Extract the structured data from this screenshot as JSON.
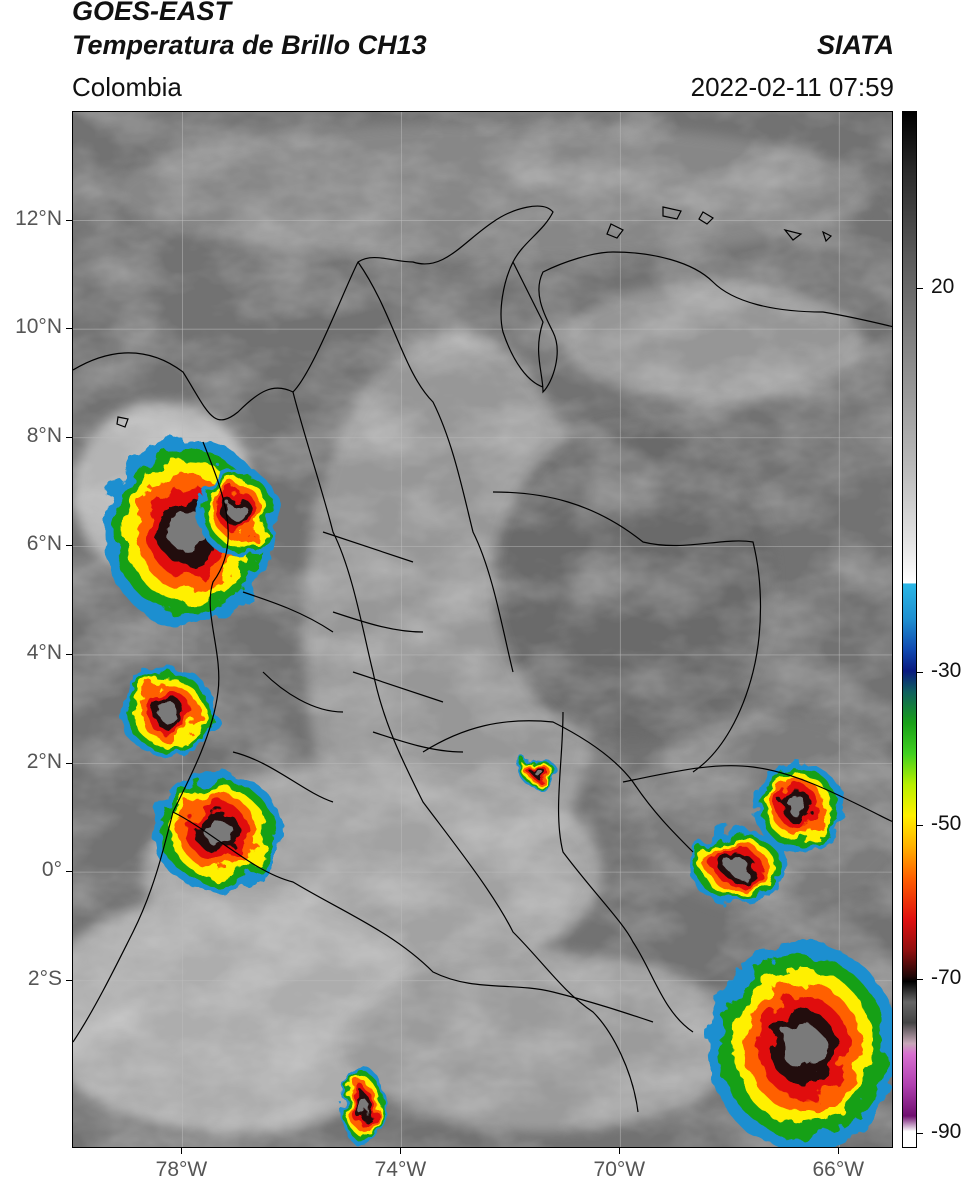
{
  "header": {
    "line1": "GOES-EAST",
    "line2": "Temperatura de Brillo CH13",
    "region": "Colombia",
    "brand": "SIATA",
    "timestamp": "2022-02-11 07:59"
  },
  "map": {
    "lat_ticks": [
      {
        "label": "12°N",
        "value": 12
      },
      {
        "label": "10°N",
        "value": 10
      },
      {
        "label": "8°N",
        "value": 8
      },
      {
        "label": "6°N",
        "value": 6
      },
      {
        "label": "4°N",
        "value": 4
      },
      {
        "label": "2°N",
        "value": 2
      },
      {
        "label": "0°",
        "value": 0
      },
      {
        "label": "2°S",
        "value": -2
      }
    ],
    "lon_ticks": [
      {
        "label": "78°W",
        "value": -78
      },
      {
        "label": "74°W",
        "value": -74
      },
      {
        "label": "70°W",
        "value": -70
      },
      {
        "label": "66°W",
        "value": -66
      }
    ],
    "lat_range": [
      -5.1,
      14.0
    ],
    "lon_range": [
      -80.0,
      -65.0
    ],
    "grid": true,
    "storm_colors": [
      "#1f8fd0",
      "#18a018",
      "#fff000",
      "#ff6000",
      "#e01010",
      "#200808",
      "#7a7a7a"
    ]
  },
  "colorbar": {
    "ticks": [
      {
        "label": "20",
        "value": 20
      },
      {
        "label": "-30",
        "value": -30
      },
      {
        "label": "-50",
        "value": -50
      },
      {
        "label": "-70",
        "value": -70
      },
      {
        "label": "-90",
        "value": -90
      }
    ],
    "range": [
      -92,
      43
    ]
  }
}
